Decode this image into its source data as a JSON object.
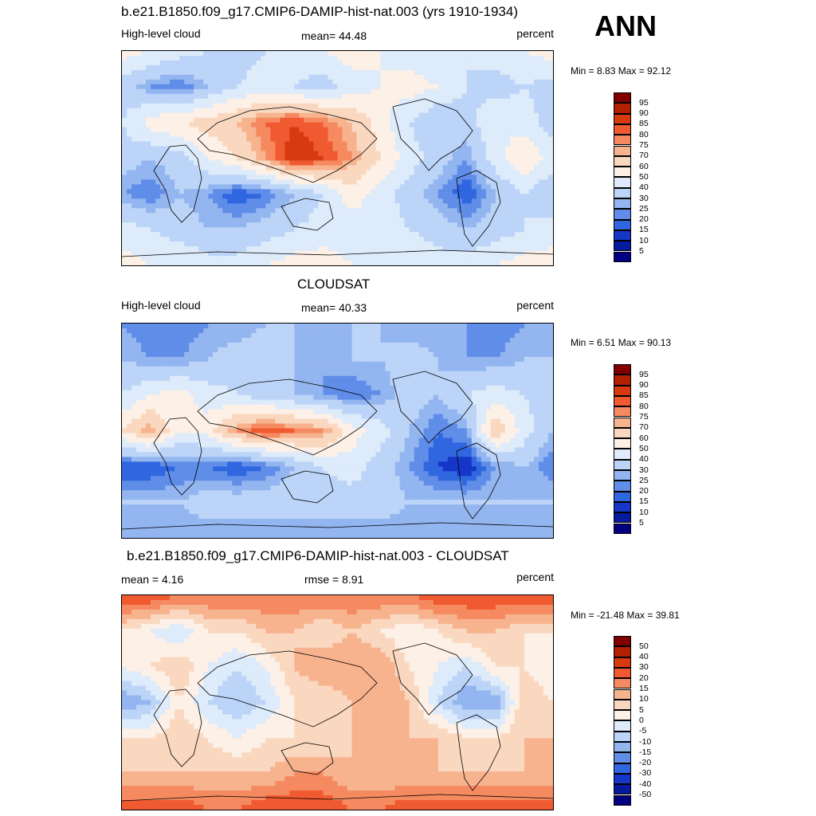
{
  "season": "ANN",
  "units": "percent",
  "panels": [
    {
      "title": "b.e21.B1850.f09_g17.CMIP6-DAMIP-hist-nat.003 (yrs 1910-1934)",
      "left_label": "High-level cloud",
      "center_label": "mean=  44.48",
      "right_label": "percent",
      "minmax": "Min =   8.83 Max =  92.12",
      "colorbar_labels": [
        "95",
        "90",
        "85",
        "80",
        "75",
        "70",
        "60",
        "50",
        "40",
        "30",
        "25",
        "20",
        "15",
        "10",
        "5"
      ]
    },
    {
      "title": "CLOUDSAT",
      "left_label": "High-level cloud",
      "center_label": "mean=  40.33",
      "right_label": "percent",
      "minmax": "Min =   6.51 Max =  90.13",
      "colorbar_labels": [
        "95",
        "90",
        "85",
        "80",
        "75",
        "70",
        "60",
        "50",
        "40",
        "30",
        "25",
        "20",
        "15",
        "10",
        "5"
      ]
    },
    {
      "title": "b.e21.B1850.f09_g17.CMIP6-DAMIP-hist-nat.003 - CLOUDSAT",
      "left_label": "mean =   4.16",
      "center_label": "rmse =   8.91",
      "right_label": "percent",
      "minmax": "Min = -21.48 Max =  39.81",
      "colorbar_labels": [
        "50",
        "40",
        "30",
        "20",
        "15",
        "10",
        "5",
        "0",
        "-5",
        "-10",
        "-15",
        "-20",
        "-30",
        "-40",
        "-50"
      ]
    }
  ],
  "colors": {
    "cloud_scale": [
      "#800000",
      "#b22000",
      "#d83a10",
      "#f05a30",
      "#f58a60",
      "#f7b28e",
      "#fad8c0",
      "#fdf0e6",
      "#ddebfb",
      "#bcd4f7",
      "#93b5f0",
      "#5f8de8",
      "#3066e0",
      "#1437c8",
      "#061b9c",
      "#000080"
    ],
    "diff_scale": [
      "#800000",
      "#b22000",
      "#d83a10",
      "#f05a30",
      "#f58a60",
      "#f7b28e",
      "#fad8c0",
      "#fdf0e6",
      "#ddebfb",
      "#bcd4f7",
      "#93b5f0",
      "#5f8de8",
      "#3066e0",
      "#1437c8",
      "#061b9c",
      "#000080"
    ]
  },
  "chart_data": [
    {
      "type": "heatmap",
      "title": "b.e21.B1850.f09_g17.CMIP6-DAMIP-hist-nat.003 (yrs 1910-1934)",
      "variable": "High-level cloud",
      "units": "percent",
      "mean": 44.48,
      "min": 8.83,
      "max": 92.12,
      "levels": [
        5,
        10,
        15,
        20,
        25,
        30,
        40,
        50,
        60,
        70,
        75,
        80,
        85,
        90,
        95
      ],
      "rows": [
        [
          55,
          50,
          45,
          40,
          35,
          40,
          45,
          50,
          55,
          50,
          45,
          40,
          40,
          45,
          50,
          55
        ],
        [
          35,
          25,
          20,
          30,
          40,
          45,
          40,
          35,
          45,
          50,
          55,
          50,
          40,
          35,
          40,
          35
        ],
        [
          40,
          55,
          60,
          65,
          70,
          80,
          85,
          80,
          70,
          55,
          40,
          30,
          35,
          50,
          45,
          35
        ],
        [
          35,
          30,
          35,
          50,
          60,
          75,
          90,
          85,
          75,
          60,
          45,
          35,
          25,
          45,
          60,
          45
        ],
        [
          25,
          20,
          30,
          25,
          15,
          20,
          30,
          40,
          55,
          45,
          35,
          25,
          15,
          30,
          40,
          30
        ],
        [
          45,
          40,
          35,
          30,
          30,
          35,
          40,
          45,
          45,
          45,
          40,
          35,
          30,
          35,
          40,
          45
        ],
        [
          55,
          50,
          50,
          45,
          45,
          50,
          55,
          55,
          50,
          50,
          50,
          45,
          45,
          50,
          55,
          55
        ]
      ]
    },
    {
      "type": "heatmap",
      "title": "CLOUDSAT",
      "variable": "High-level cloud",
      "units": "percent",
      "mean": 40.33,
      "min": 6.51,
      "max": 90.13,
      "levels": [
        5,
        10,
        15,
        20,
        25,
        30,
        40,
        50,
        60,
        70,
        75,
        80,
        85,
        90,
        95
      ],
      "rows": [
        [
          25,
          20,
          20,
          25,
          25,
          30,
          30,
          30,
          30,
          30,
          25,
          25,
          25,
          20,
          25,
          25
        ],
        [
          30,
          25,
          25,
          30,
          35,
          35,
          30,
          25,
          30,
          30,
          35,
          30,
          25,
          25,
          30,
          30
        ],
        [
          40,
          50,
          55,
          45,
          40,
          35,
          30,
          25,
          20,
          25,
          35,
          30,
          40,
          45,
          40,
          35
        ],
        [
          60,
          75,
          50,
          55,
          75,
          85,
          80,
          75,
          55,
          45,
          30,
          20,
          25,
          70,
          45,
          30
        ],
        [
          15,
          15,
          20,
          20,
          15,
          20,
          30,
          40,
          45,
          35,
          25,
          15,
          10,
          25,
          30,
          20
        ],
        [
          30,
          30,
          30,
          35,
          35,
          35,
          35,
          35,
          35,
          35,
          30,
          30,
          30,
          30,
          30,
          30
        ],
        [
          30,
          25,
          25,
          25,
          25,
          25,
          25,
          25,
          25,
          25,
          25,
          25,
          25,
          25,
          25,
          30
        ]
      ]
    },
    {
      "type": "heatmap",
      "title": "b.e21.B1850.f09_g17.CMIP6-DAMIP-hist-nat.003 - CLOUDSAT",
      "units": "percent",
      "mean": 4.16,
      "rmse": 8.91,
      "min": -21.48,
      "max": 39.81,
      "levels": [
        -50,
        -40,
        -30,
        -20,
        -15,
        -10,
        -5,
        0,
        5,
        10,
        15,
        20,
        30,
        40,
        50
      ],
      "rows": [
        [
          25,
          25,
          20,
          20,
          20,
          20,
          20,
          20,
          20,
          20,
          20,
          25,
          25,
          25,
          25,
          25
        ],
        [
          5,
          0,
          -5,
          5,
          5,
          10,
          10,
          5,
          10,
          5,
          0,
          5,
          10,
          10,
          5,
          5
        ],
        [
          0,
          5,
          10,
          0,
          -5,
          0,
          10,
          15,
          15,
          15,
          5,
          0,
          -5,
          5,
          5,
          0
        ],
        [
          -15,
          -10,
          5,
          -5,
          -10,
          -5,
          5,
          5,
          10,
          15,
          10,
          -5,
          -15,
          -15,
          10,
          5
        ],
        [
          5,
          5,
          10,
          5,
          0,
          5,
          5,
          5,
          10,
          10,
          10,
          10,
          5,
          5,
          10,
          10
        ],
        [
          10,
          10,
          10,
          10,
          10,
          10,
          15,
          15,
          10,
          10,
          10,
          10,
          10,
          10,
          10,
          10
        ],
        [
          25,
          25,
          25,
          20,
          20,
          25,
          25,
          25,
          20,
          20,
          25,
          25,
          25,
          25,
          25,
          25
        ]
      ]
    }
  ]
}
